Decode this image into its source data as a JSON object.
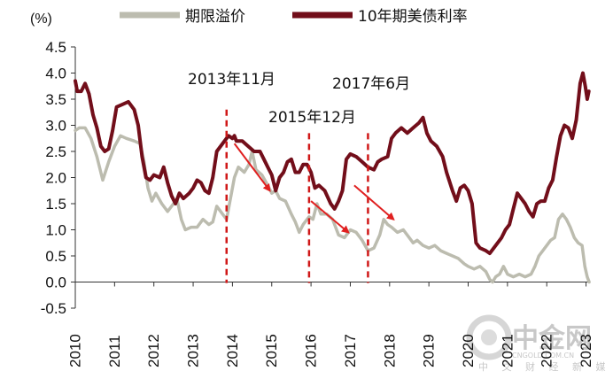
{
  "chart_data": {
    "type": "line",
    "title": "",
    "xlabel": "",
    "ylabel": "(%)",
    "ylim": [
      -0.5,
      4.5
    ],
    "xlim": [
      2010,
      2023.1
    ],
    "y_ticks": [
      "-0.5",
      "0.0",
      "0.5",
      "1.0",
      "1.5",
      "2.0",
      "2.5",
      "3.0",
      "3.5",
      "4.0",
      "4.5"
    ],
    "x_ticks": [
      "2010",
      "2011",
      "2012",
      "2013",
      "2014",
      "2015",
      "2016",
      "2017",
      "2018",
      "2019",
      "2020",
      "2021",
      "2022",
      "2023"
    ],
    "grid": false,
    "legend_position": "top",
    "series": [
      {
        "name": "期限溢价",
        "color": "#bcbcaf",
        "points": [
          [
            2010.0,
            2.9
          ],
          [
            2010.1,
            2.95
          ],
          [
            2010.25,
            2.95
          ],
          [
            2010.4,
            2.75
          ],
          [
            2010.55,
            2.4
          ],
          [
            2010.7,
            1.95
          ],
          [
            2010.85,
            2.3
          ],
          [
            2011.0,
            2.6
          ],
          [
            2011.15,
            2.8
          ],
          [
            2011.3,
            2.75
          ],
          [
            2011.5,
            2.7
          ],
          [
            2011.65,
            2.65
          ],
          [
            2011.75,
            2.3
          ],
          [
            2011.85,
            1.8
          ],
          [
            2011.95,
            1.55
          ],
          [
            2012.05,
            1.7
          ],
          [
            2012.2,
            1.5
          ],
          [
            2012.35,
            1.35
          ],
          [
            2012.5,
            1.5
          ],
          [
            2012.6,
            1.55
          ],
          [
            2012.7,
            1.2
          ],
          [
            2012.8,
            1.0
          ],
          [
            2012.95,
            1.05
          ],
          [
            2013.1,
            1.05
          ],
          [
            2013.25,
            1.2
          ],
          [
            2013.4,
            1.1
          ],
          [
            2013.5,
            1.15
          ],
          [
            2013.6,
            1.45
          ],
          [
            2013.75,
            1.3
          ],
          [
            2013.85,
            1.2
          ],
          [
            2013.95,
            1.6
          ],
          [
            2014.05,
            2.0
          ],
          [
            2014.15,
            2.2
          ],
          [
            2014.3,
            2.1
          ],
          [
            2014.42,
            2.25
          ],
          [
            2014.5,
            2.5
          ],
          [
            2014.6,
            2.15
          ],
          [
            2014.75,
            2.05
          ],
          [
            2014.9,
            1.85
          ],
          [
            2015.0,
            1.7
          ],
          [
            2015.1,
            1.75
          ],
          [
            2015.2,
            1.6
          ],
          [
            2015.35,
            1.55
          ],
          [
            2015.5,
            1.3
          ],
          [
            2015.6,
            1.15
          ],
          [
            2015.7,
            0.95
          ],
          [
            2015.8,
            1.1
          ],
          [
            2015.95,
            1.25
          ],
          [
            2016.05,
            1.2
          ],
          [
            2016.15,
            1.5
          ],
          [
            2016.25,
            1.3
          ],
          [
            2016.4,
            1.3
          ],
          [
            2016.55,
            1.2
          ],
          [
            2016.7,
            0.9
          ],
          [
            2016.85,
            0.85
          ],
          [
            2017.0,
            1.0
          ],
          [
            2017.15,
            0.95
          ],
          [
            2017.3,
            0.8
          ],
          [
            2017.45,
            0.6
          ],
          [
            2017.6,
            0.65
          ],
          [
            2017.75,
            0.9
          ],
          [
            2017.85,
            1.2
          ],
          [
            2017.95,
            1.1
          ],
          [
            2018.05,
            1.05
          ],
          [
            2018.2,
            0.95
          ],
          [
            2018.35,
            1.0
          ],
          [
            2018.5,
            0.85
          ],
          [
            2018.6,
            0.75
          ],
          [
            2018.7,
            0.8
          ],
          [
            2018.85,
            0.7
          ],
          [
            2019.0,
            0.65
          ],
          [
            2019.15,
            0.7
          ],
          [
            2019.3,
            0.6
          ],
          [
            2019.45,
            0.55
          ],
          [
            2019.6,
            0.5
          ],
          [
            2019.75,
            0.45
          ],
          [
            2019.9,
            0.35
          ],
          [
            2020.0,
            0.3
          ],
          [
            2020.15,
            0.25
          ],
          [
            2020.3,
            0.3
          ],
          [
            2020.45,
            0.2
          ],
          [
            2020.55,
            0.05
          ],
          [
            2020.62,
            0.0
          ],
          [
            2020.7,
            0.1
          ],
          [
            2020.8,
            0.15
          ],
          [
            2020.9,
            0.3
          ],
          [
            2021.0,
            0.15
          ],
          [
            2021.15,
            0.1
          ],
          [
            2021.3,
            0.15
          ],
          [
            2021.45,
            0.1
          ],
          [
            2021.6,
            0.15
          ],
          [
            2021.7,
            0.3
          ],
          [
            2021.8,
            0.5
          ],
          [
            2021.9,
            0.6
          ],
          [
            2022.0,
            0.7
          ],
          [
            2022.1,
            0.8
          ],
          [
            2022.2,
            0.85
          ],
          [
            2022.3,
            1.2
          ],
          [
            2022.4,
            1.3
          ],
          [
            2022.5,
            1.2
          ],
          [
            2022.6,
            1.05
          ],
          [
            2022.7,
            0.85
          ],
          [
            2022.8,
            0.75
          ],
          [
            2022.9,
            0.7
          ],
          [
            2022.97,
            0.3
          ],
          [
            2023.03,
            0.1
          ],
          [
            2023.08,
            0.0
          ]
        ]
      },
      {
        "name": "10年期美债利率",
        "color": "#720e1a",
        "points": [
          [
            2010.0,
            3.85
          ],
          [
            2010.05,
            3.65
          ],
          [
            2010.15,
            3.65
          ],
          [
            2010.25,
            3.8
          ],
          [
            2010.35,
            3.6
          ],
          [
            2010.45,
            3.2
          ],
          [
            2010.55,
            2.95
          ],
          [
            2010.65,
            2.6
          ],
          [
            2010.75,
            2.5
          ],
          [
            2010.85,
            2.55
          ],
          [
            2010.95,
            2.9
          ],
          [
            2011.05,
            3.35
          ],
          [
            2011.2,
            3.4
          ],
          [
            2011.35,
            3.45
          ],
          [
            2011.5,
            3.3
          ],
          [
            2011.6,
            3.0
          ],
          [
            2011.7,
            2.4
          ],
          [
            2011.8,
            2.0
          ],
          [
            2011.9,
            1.95
          ],
          [
            2012.0,
            2.05
          ],
          [
            2012.15,
            2.0
          ],
          [
            2012.25,
            2.2
          ],
          [
            2012.35,
            1.9
          ],
          [
            2012.45,
            1.65
          ],
          [
            2012.55,
            1.5
          ],
          [
            2012.65,
            1.7
          ],
          [
            2012.75,
            1.6
          ],
          [
            2012.9,
            1.7
          ],
          [
            2013.0,
            1.8
          ],
          [
            2013.1,
            1.95
          ],
          [
            2013.2,
            1.9
          ],
          [
            2013.3,
            1.75
          ],
          [
            2013.4,
            1.7
          ],
          [
            2013.5,
            2.0
          ],
          [
            2013.6,
            2.5
          ],
          [
            2013.7,
            2.6
          ],
          [
            2013.8,
            2.7
          ],
          [
            2013.9,
            2.8
          ],
          [
            2014.0,
            2.75
          ],
          [
            2014.05,
            2.8
          ],
          [
            2014.1,
            2.7
          ],
          [
            2014.25,
            2.7
          ],
          [
            2014.4,
            2.6
          ],
          [
            2014.55,
            2.5
          ],
          [
            2014.7,
            2.5
          ],
          [
            2014.8,
            2.35
          ],
          [
            2014.9,
            2.2
          ],
          [
            2015.0,
            2.05
          ],
          [
            2015.1,
            1.75
          ],
          [
            2015.2,
            2.0
          ],
          [
            2015.3,
            2.1
          ],
          [
            2015.4,
            2.3
          ],
          [
            2015.5,
            2.35
          ],
          [
            2015.6,
            2.1
          ],
          [
            2015.7,
            2.1
          ],
          [
            2015.8,
            2.25
          ],
          [
            2015.9,
            2.25
          ],
          [
            2016.0,
            2.1
          ],
          [
            2016.1,
            1.8
          ],
          [
            2016.2,
            1.85
          ],
          [
            2016.35,
            1.75
          ],
          [
            2016.5,
            1.5
          ],
          [
            2016.6,
            1.4
          ],
          [
            2016.7,
            1.55
          ],
          [
            2016.8,
            1.75
          ],
          [
            2016.9,
            2.35
          ],
          [
            2017.0,
            2.45
          ],
          [
            2017.15,
            2.4
          ],
          [
            2017.3,
            2.3
          ],
          [
            2017.45,
            2.2
          ],
          [
            2017.6,
            2.15
          ],
          [
            2017.7,
            2.3
          ],
          [
            2017.8,
            2.35
          ],
          [
            2017.95,
            2.4
          ],
          [
            2018.05,
            2.75
          ],
          [
            2018.15,
            2.85
          ],
          [
            2018.3,
            2.95
          ],
          [
            2018.45,
            2.85
          ],
          [
            2018.6,
            2.95
          ],
          [
            2018.75,
            3.05
          ],
          [
            2018.85,
            3.15
          ],
          [
            2018.95,
            2.85
          ],
          [
            2019.05,
            2.7
          ],
          [
            2019.2,
            2.6
          ],
          [
            2019.35,
            2.4
          ],
          [
            2019.45,
            2.1
          ],
          [
            2019.6,
            1.75
          ],
          [
            2019.7,
            1.55
          ],
          [
            2019.8,
            1.8
          ],
          [
            2019.9,
            1.85
          ],
          [
            2020.0,
            1.75
          ],
          [
            2020.1,
            1.5
          ],
          [
            2020.2,
            0.75
          ],
          [
            2020.3,
            0.65
          ],
          [
            2020.45,
            0.6
          ],
          [
            2020.55,
            0.55
          ],
          [
            2020.7,
            0.7
          ],
          [
            2020.85,
            0.85
          ],
          [
            2020.95,
            1.0
          ],
          [
            2021.05,
            1.1
          ],
          [
            2021.15,
            1.4
          ],
          [
            2021.25,
            1.7
          ],
          [
            2021.35,
            1.6
          ],
          [
            2021.45,
            1.5
          ],
          [
            2021.55,
            1.35
          ],
          [
            2021.65,
            1.25
          ],
          [
            2021.75,
            1.5
          ],
          [
            2021.85,
            1.55
          ],
          [
            2021.95,
            1.55
          ],
          [
            2022.05,
            1.8
          ],
          [
            2022.15,
            1.95
          ],
          [
            2022.25,
            2.4
          ],
          [
            2022.35,
            2.8
          ],
          [
            2022.45,
            3.0
          ],
          [
            2022.55,
            2.95
          ],
          [
            2022.65,
            2.75
          ],
          [
            2022.75,
            3.1
          ],
          [
            2022.85,
            3.8
          ],
          [
            2022.92,
            4.0
          ],
          [
            2022.98,
            3.75
          ],
          [
            2023.03,
            3.5
          ],
          [
            2023.07,
            3.65
          ]
        ]
      }
    ],
    "annotations": [
      {
        "text": "2013年11月",
        "x": 2013.85,
        "y_top": 3.3,
        "arrow_from": [
          2014.05,
          2.65
        ],
        "arrow_to": [
          2014.95,
          1.75
        ]
      },
      {
        "text": "2015年12月",
        "x": 2015.95,
        "y_top": 2.85,
        "arrow_from": [
          2016.0,
          1.55
        ],
        "arrow_to": [
          2016.95,
          0.95
        ]
      },
      {
        "text": "2017年6月",
        "x": 2017.45,
        "y_top": 2.85,
        "arrow_from": [
          2017.1,
          1.85
        ],
        "arrow_to": [
          2018.1,
          1.2
        ]
      }
    ],
    "watermark": {
      "main": "中金网",
      "url": "CNGOLD.COM.CN",
      "sub": "中 文 财 经 新 媒 体"
    }
  }
}
